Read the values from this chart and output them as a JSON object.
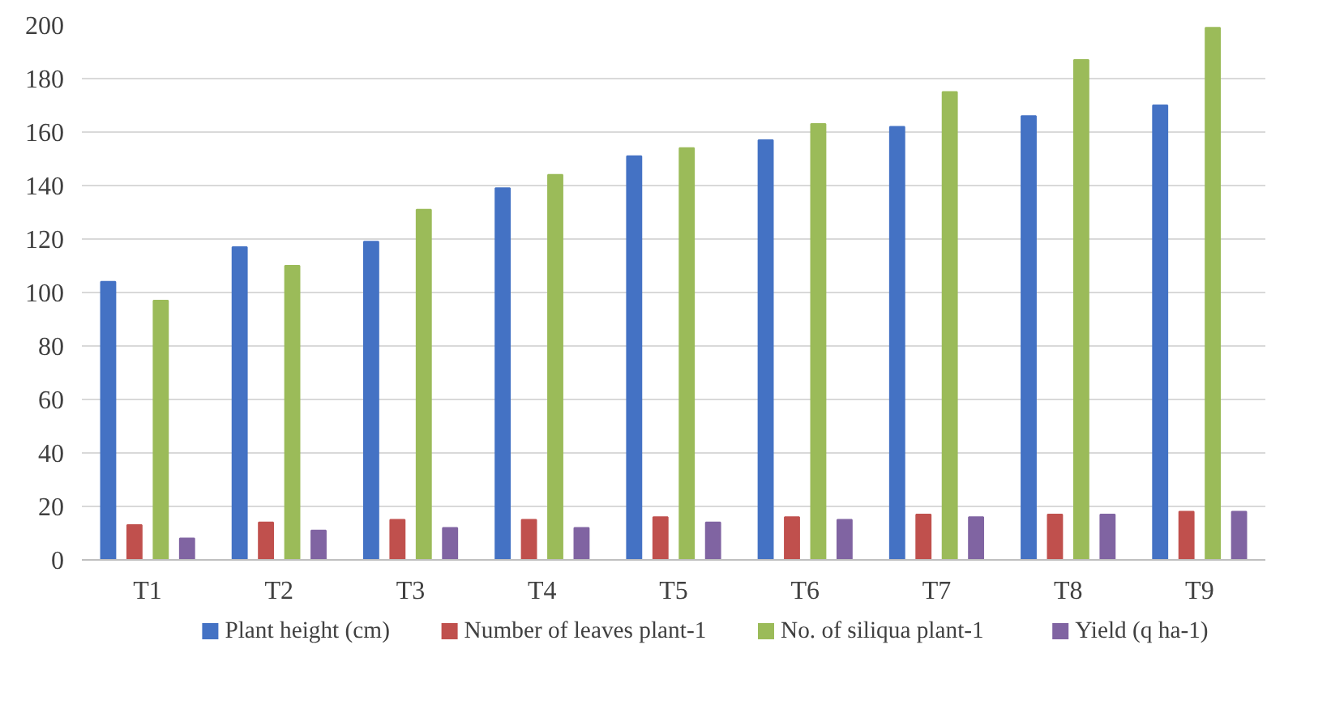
{
  "chart_data": {
    "type": "bar",
    "categories": [
      "T1",
      "T2",
      "T3",
      "T4",
      "T5",
      "T6",
      "T7",
      "T8",
      "T9"
    ],
    "series": [
      {
        "name": "Plant height (cm)",
        "color": "#4472c4",
        "values": [
          104,
          117,
          119,
          139,
          151,
          157,
          162,
          166,
          170
        ]
      },
      {
        "name": "Number of leaves plant-1",
        "color": "#c0504d",
        "values": [
          13,
          14,
          15,
          15,
          16,
          16,
          17,
          17,
          18
        ]
      },
      {
        "name": "No. of siliqua plant-1",
        "color": "#9bbb59",
        "values": [
          97,
          110,
          131,
          144,
          154,
          163,
          175,
          187,
          199
        ]
      },
      {
        "name": "Yield (q ha-1)",
        "color": "#8064a2",
        "values": [
          8,
          11,
          12,
          12,
          14,
          15,
          16,
          17,
          18
        ]
      }
    ],
    "ylim": [
      0,
      200
    ],
    "yticks": [
      0,
      20,
      40,
      60,
      80,
      100,
      120,
      140,
      160,
      180,
      200
    ],
    "grid": "y",
    "legend": "bottom"
  }
}
